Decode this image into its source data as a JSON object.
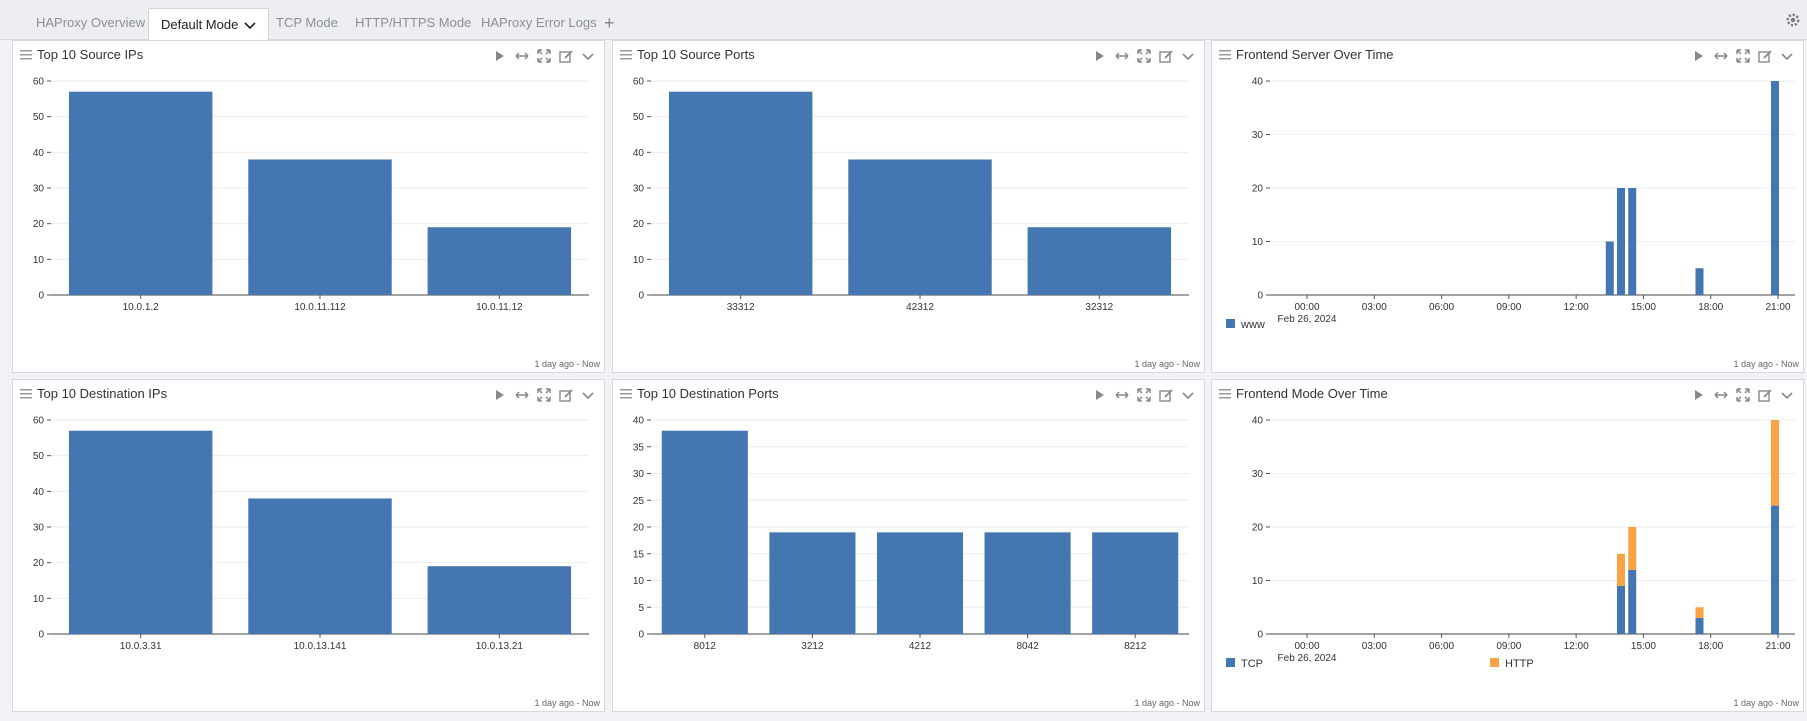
{
  "tabs": [
    {
      "label": "HAProxy Overview"
    },
    {
      "label": "Default Mode"
    },
    {
      "label": "TCP Mode"
    },
    {
      "label": "HTTP/HTTPS Mode"
    },
    {
      "label": "HAProxy Error Logs"
    }
  ],
  "add_tab_label": "+",
  "colors": {
    "bar": "#4477b1",
    "tcp": "#4477b1",
    "http": "#f9a346"
  },
  "panels": [
    {
      "title": "Top 10 Source IPs",
      "footer": "1 day ago - Now"
    },
    {
      "title": "Top 10 Source Ports",
      "footer": "1 day ago - Now"
    },
    {
      "title": "Frontend Server Over Time",
      "footer": "1 day ago - Now"
    },
    {
      "title": "Top 10 Destination IPs",
      "footer": "1 day ago - Now"
    },
    {
      "title": "Top 10 Destination Ports",
      "footer": "1 day ago - Now"
    },
    {
      "title": "Frontend Mode Over Time",
      "footer": "1 day ago - Now"
    }
  ],
  "chart_data": [
    {
      "type": "bar",
      "categories": [
        "10.0.1.2",
        "10.0.11.112",
        "10.0.11.12"
      ],
      "values": [
        57,
        38,
        19
      ],
      "ylim": [
        0,
        60
      ],
      "yticks": [
        0,
        10,
        20,
        30,
        40,
        50,
        60
      ]
    },
    {
      "type": "bar",
      "categories": [
        "33312",
        "42312",
        "32312"
      ],
      "values": [
        57,
        38,
        19
      ],
      "ylim": [
        0,
        60
      ],
      "yticks": [
        0,
        10,
        20,
        30,
        40,
        50,
        60
      ]
    },
    {
      "type": "bar",
      "x_ticks": [
        "00:00",
        "03:00",
        "06:00",
        "09:00",
        "12:00",
        "15:00",
        "18:00",
        "21:00"
      ],
      "x_date_label": "Feb 26, 2024",
      "ylim": [
        0,
        40
      ],
      "yticks": [
        0,
        10,
        20,
        30,
        40
      ],
      "series": [
        {
          "name": "www",
          "points": [
            [
              "13:30",
              10
            ],
            [
              "14:00",
              20
            ],
            [
              "14:30",
              20
            ],
            [
              "17:30",
              5
            ],
            [
              "21:00",
              40
            ]
          ]
        }
      ],
      "legend": "bottom-left"
    },
    {
      "type": "bar",
      "categories": [
        "10.0.3.31",
        "10.0.13.141",
        "10.0.13.21"
      ],
      "values": [
        57,
        38,
        19
      ],
      "ylim": [
        0,
        60
      ],
      "yticks": [
        0,
        10,
        20,
        30,
        40,
        50,
        60
      ]
    },
    {
      "type": "bar",
      "categories": [
        "8012",
        "3212",
        "4212",
        "8042",
        "8212"
      ],
      "values": [
        38,
        19,
        19,
        19,
        19
      ],
      "ylim": [
        0,
        40
      ],
      "yticks": [
        0,
        5,
        10,
        15,
        20,
        25,
        30,
        35,
        40
      ]
    },
    {
      "type": "bar",
      "stacked": true,
      "x_ticks": [
        "00:00",
        "03:00",
        "06:00",
        "09:00",
        "12:00",
        "15:00",
        "18:00",
        "21:00"
      ],
      "x_date_label": "Feb 26, 2024",
      "ylim": [
        0,
        40
      ],
      "yticks": [
        0,
        10,
        20,
        30,
        40
      ],
      "times": [
        "14:00",
        "14:30",
        "17:30",
        "21:00"
      ],
      "series": [
        {
          "name": "TCP",
          "values": [
            9,
            12,
            3,
            24
          ]
        },
        {
          "name": "HTTP",
          "values": [
            6,
            8,
            2,
            16
          ]
        }
      ],
      "legend": "bottom-left"
    }
  ]
}
